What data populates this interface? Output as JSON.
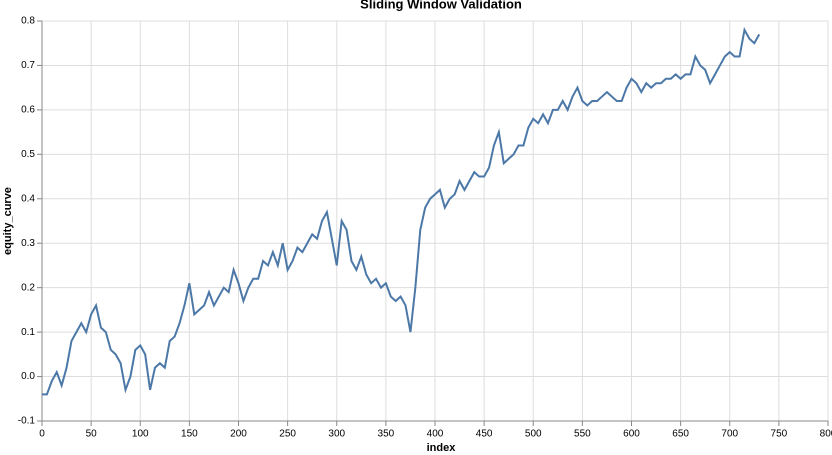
{
  "chart_data": {
    "type": "line",
    "title": "Sliding Window Validation",
    "x_label": "index",
    "y_label": "equity_curve",
    "x": [
      0,
      5,
      10,
      15,
      20,
      25,
      30,
      35,
      40,
      45,
      50,
      55,
      60,
      65,
      70,
      75,
      80,
      85,
      90,
      95,
      100,
      105,
      110,
      115,
      120,
      125,
      130,
      135,
      140,
      145,
      150,
      155,
      160,
      165,
      170,
      175,
      180,
      185,
      190,
      195,
      200,
      205,
      210,
      215,
      220,
      225,
      230,
      235,
      240,
      245,
      250,
      255,
      260,
      265,
      270,
      275,
      280,
      285,
      290,
      295,
      300,
      305,
      310,
      315,
      320,
      325,
      330,
      335,
      340,
      345,
      350,
      355,
      360,
      365,
      370,
      375,
      380,
      385,
      390,
      395,
      400,
      405,
      410,
      415,
      420,
      425,
      430,
      435,
      440,
      445,
      450,
      455,
      460,
      465,
      470,
      475,
      480,
      485,
      490,
      495,
      500,
      505,
      510,
      515,
      520,
      525,
      530,
      535,
      540,
      545,
      550,
      555,
      560,
      565,
      570,
      575,
      580,
      585,
      590,
      595,
      600,
      605,
      610,
      615,
      620,
      625,
      630,
      635,
      640,
      645,
      650,
      655,
      660,
      665,
      670,
      675,
      680,
      685,
      690,
      695,
      700,
      705,
      710,
      715,
      720,
      725,
      730
    ],
    "series": [
      {
        "name": "equity_curve",
        "color": "#4c78a8",
        "values": [
          -0.04,
          -0.04,
          -0.01,
          0.01,
          -0.02,
          0.02,
          0.08,
          0.1,
          0.12,
          0.1,
          0.14,
          0.16,
          0.11,
          0.1,
          0.06,
          0.05,
          0.03,
          -0.03,
          0.0,
          0.06,
          0.07,
          0.05,
          -0.03,
          0.02,
          0.03,
          0.02,
          0.08,
          0.09,
          0.12,
          0.16,
          0.21,
          0.14,
          0.15,
          0.16,
          0.19,
          0.16,
          0.18,
          0.2,
          0.19,
          0.24,
          0.21,
          0.17,
          0.2,
          0.22,
          0.22,
          0.26,
          0.25,
          0.28,
          0.25,
          0.3,
          0.24,
          0.26,
          0.29,
          0.28,
          0.3,
          0.32,
          0.31,
          0.35,
          0.37,
          0.31,
          0.25,
          0.35,
          0.33,
          0.26,
          0.24,
          0.27,
          0.23,
          0.21,
          0.22,
          0.2,
          0.21,
          0.18,
          0.17,
          0.18,
          0.16,
          0.1,
          0.2,
          0.33,
          0.38,
          0.4,
          0.41,
          0.42,
          0.38,
          0.4,
          0.41,
          0.44,
          0.42,
          0.44,
          0.46,
          0.45,
          0.45,
          0.47,
          0.52,
          0.55,
          0.48,
          0.49,
          0.5,
          0.52,
          0.52,
          0.56,
          0.58,
          0.57,
          0.59,
          0.57,
          0.6,
          0.6,
          0.62,
          0.6,
          0.63,
          0.65,
          0.62,
          0.61,
          0.62,
          0.62,
          0.63,
          0.64,
          0.63,
          0.62,
          0.62,
          0.65,
          0.67,
          0.66,
          0.64,
          0.66,
          0.65,
          0.66,
          0.66,
          0.67,
          0.67,
          0.68,
          0.67,
          0.68,
          0.68,
          0.72,
          0.7,
          0.69,
          0.66,
          0.68,
          0.7,
          0.72,
          0.73,
          0.72,
          0.72,
          0.78,
          0.76,
          0.75,
          0.77
        ]
      }
    ],
    "xlim": [
      0,
      800
    ],
    "xticks": [
      0,
      50,
      100,
      150,
      200,
      250,
      300,
      350,
      400,
      450,
      500,
      550,
      600,
      650,
      700,
      750,
      800
    ],
    "ylim": [
      -0.1,
      0.8
    ],
    "yticks": [
      -0.1,
      {
        "value": 0,
        "label": "0.0"
      },
      0.1,
      0.2,
      0.3,
      0.4,
      0.5,
      0.6,
      0.7,
      0.8
    ],
    "grid": true
  }
}
